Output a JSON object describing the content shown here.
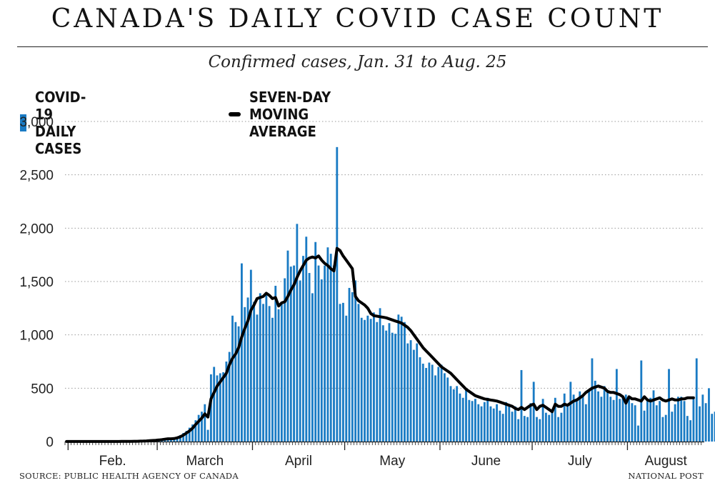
{
  "title": "CANADA'S DAILY COVID CASE COUNT",
  "subtitle": "Confirmed cases, Jan. 31 to Aug. 25",
  "legend": {
    "bars": "COVID-19 DAILY CASES",
    "line": "SEVEN-DAY MOVING AVERAGE"
  },
  "footer": {
    "source": "SOURCE: PUBLIC HEALTH AGENCY OF CANADA",
    "credit": "NATIONAL POST"
  },
  "colors": {
    "bars": "#1a7bc4",
    "line": "#000000",
    "grid": "#999999",
    "axis": "#222222"
  },
  "chart_data": {
    "type": "bar",
    "title": "CANADA'S DAILY COVID CASE COUNT",
    "subtitle": "Confirmed cases, Jan. 31 to Aug. 25",
    "xlabel": "",
    "ylabel": "",
    "x_start": "2020-01-31",
    "x_end": "2020-08-25",
    "ylim": [
      0,
      3000
    ],
    "yticks": [
      0,
      500,
      1000,
      1500,
      2000,
      2500,
      3000
    ],
    "ytick_labels": [
      "0",
      "500",
      "1,000",
      "1,500",
      "2,000",
      "2,500",
      "3,000"
    ],
    "month_labels": [
      "Feb.",
      "March",
      "April",
      "May",
      "June",
      "July",
      "August"
    ],
    "grid": "horizontal dotted",
    "legend_position": "top-left",
    "series": [
      {
        "name": "COVID-19 DAILY CASES",
        "type": "bar",
        "values": [
          1,
          0,
          1,
          1,
          0,
          1,
          1,
          1,
          0,
          1,
          1,
          1,
          1,
          0,
          1,
          1,
          2,
          1,
          1,
          2,
          1,
          3,
          2,
          4,
          5,
          6,
          8,
          9,
          12,
          15,
          18,
          22,
          25,
          30,
          15,
          20,
          40,
          60,
          80,
          100,
          130,
          160,
          200,
          250,
          280,
          350,
          110,
          630,
          700,
          620,
          640,
          650,
          750,
          840,
          1180,
          1120,
          1080,
          1670,
          1260,
          1350,
          1610,
          1310,
          1190,
          1390,
          1290,
          1400,
          1270,
          1160,
          1460,
          1240,
          1310,
          1530,
          1790,
          1640,
          1650,
          2040,
          1510,
          1740,
          1920,
          1580,
          1390,
          1870,
          1650,
          1520,
          1650,
          1820,
          1760,
          1650,
          2760,
          1290,
          1300,
          1180,
          1440,
          1400,
          1510,
          1290,
          1160,
          1140,
          1180,
          1150,
          1210,
          1120,
          1250,
          1090,
          1040,
          1110,
          1020,
          1010,
          1190,
          1170,
          1120,
          920,
          950,
          860,
          920,
          790,
          730,
          690,
          740,
          720,
          620,
          700,
          720,
          640,
          600,
          520,
          490,
          520,
          450,
          410,
          480,
          390,
          380,
          400,
          350,
          330,
          370,
          410,
          330,
          310,
          350,
          290,
          260,
          370,
          330,
          280,
          330,
          210,
          670,
          240,
          230,
          360,
          560,
          230,
          210,
          400,
          270,
          250,
          300,
          410,
          230,
          270,
          450,
          330,
          560,
          440,
          380,
          470,
          430,
          350,
          480,
          780,
          570,
          470,
          420,
          520,
          460,
          420,
          390,
          680,
          400,
          420,
          440,
          410,
          360,
          340,
          150,
          760,
          290,
          380,
          410,
          480,
          340,
          380,
          230,
          250,
          680,
          280,
          350,
          420,
          420,
          380,
          240,
          200,
          420,
          780,
          330,
          440,
          360,
          500,
          260,
          280,
          750,
          320
        ]
      },
      {
        "name": "SEVEN-DAY MOVING AVERAGE",
        "type": "line",
        "values": [
          1,
          1,
          1,
          1,
          1,
          1,
          1,
          1,
          1,
          1,
          1,
          1,
          1,
          1,
          1,
          1,
          1,
          1,
          2,
          2,
          2,
          2,
          3,
          3,
          4,
          5,
          6,
          8,
          10,
          12,
          15,
          18,
          22,
          26,
          26,
          28,
          35,
          45,
          60,
          80,
          100,
          125,
          160,
          190,
          220,
          260,
          230,
          400,
          460,
          520,
          560,
          600,
          640,
          720,
          780,
          820,
          880,
          980,
          1060,
          1130,
          1230,
          1280,
          1340,
          1350,
          1360,
          1390,
          1370,
          1340,
          1350,
          1270,
          1300,
          1310,
          1360,
          1420,
          1470,
          1540,
          1600,
          1650,
          1700,
          1720,
          1730,
          1720,
          1740,
          1700,
          1670,
          1650,
          1620,
          1600,
          1810,
          1790,
          1740,
          1700,
          1660,
          1620,
          1360,
          1320,
          1300,
          1280,
          1250,
          1200,
          1180,
          1175,
          1170,
          1165,
          1160,
          1150,
          1140,
          1130,
          1120,
          1110,
          1090,
          1070,
          1040,
          1000,
          960,
          920,
          880,
          850,
          820,
          790,
          760,
          730,
          700,
          680,
          660,
          640,
          610,
          580,
          550,
          520,
          490,
          470,
          450,
          430,
          420,
          410,
          400,
          395,
          390,
          385,
          380,
          370,
          360,
          350,
          340,
          330,
          310,
          300,
          320,
          300,
          320,
          340,
          350,
          300,
          330,
          340,
          320,
          300,
          280,
          350,
          330,
          330,
          350,
          340,
          360,
          380,
          390,
          410,
          430,
          460,
          480,
          500,
          510,
          520,
          510,
          500,
          470,
          460,
          460,
          450,
          440,
          420,
          360,
          420,
          400,
          400,
          390,
          380,
          420,
          390,
          380,
          390,
          400,
          410,
          390,
          380,
          390,
          400,
          390,
          390,
          400,
          400,
          410,
          410,
          410
        ]
      }
    ]
  }
}
